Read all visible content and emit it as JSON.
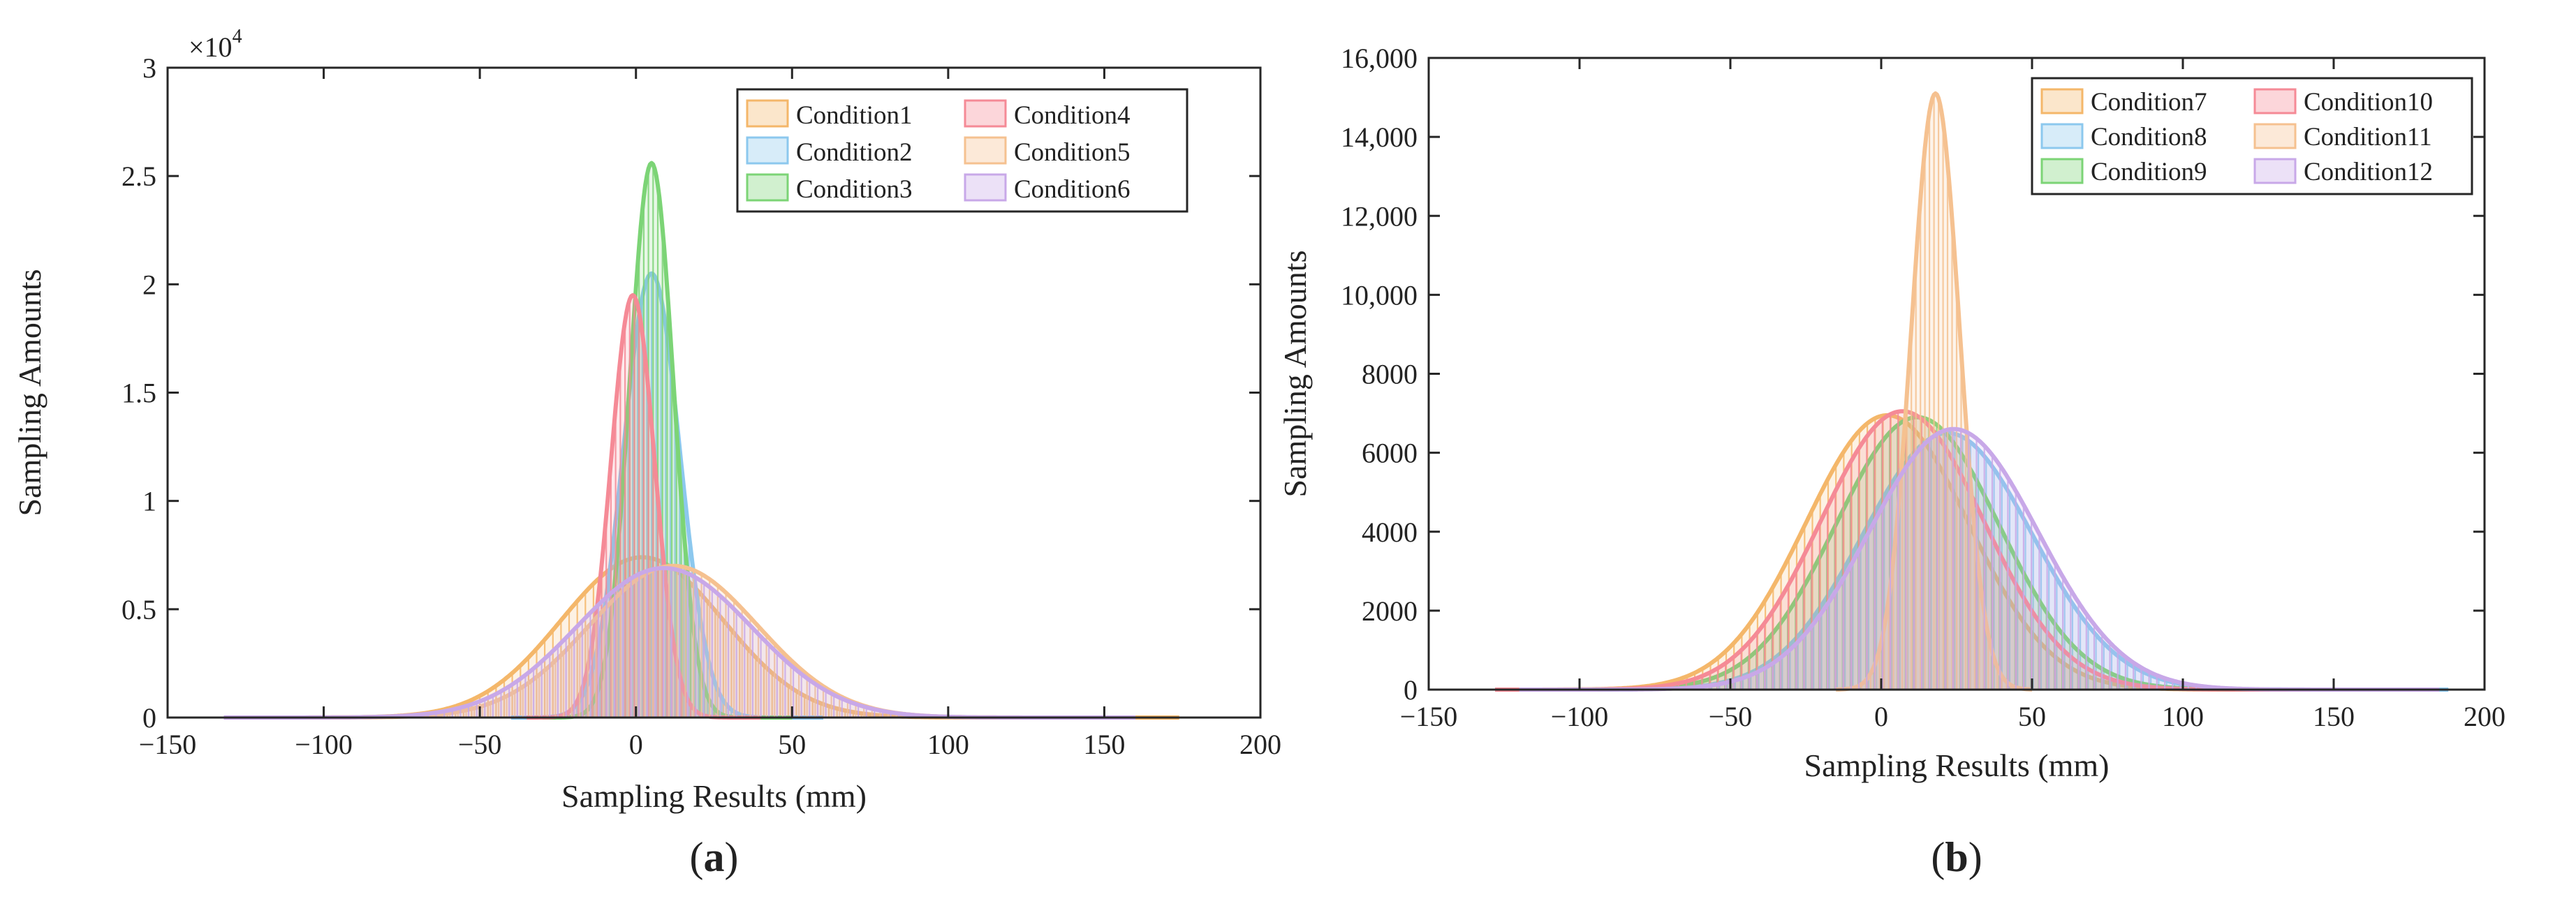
{
  "panels": [
    {
      "id": "a",
      "label_prefix": "(",
      "label_letter": "a",
      "label_suffix": ")",
      "multiplier_text": "×10",
      "multiplier_exp": "4",
      "y_tick_labels": [
        "0",
        "0.5",
        "1",
        "1.5",
        "2",
        "2.5",
        "3"
      ]
    },
    {
      "id": "b",
      "label_prefix": "(",
      "label_letter": "b",
      "label_suffix": ")",
      "y_tick_labels": [
        "0",
        "2000",
        "4000",
        "6000",
        "8000",
        "10,000",
        "12,000",
        "14,000",
        "16,000"
      ]
    }
  ],
  "chart_data": [
    {
      "type": "area",
      "xlabel": "Sampling Results (mm)",
      "ylabel": "Sampling Amounts",
      "xlim": [
        -150,
        200
      ],
      "ylim": [
        0,
        30000
      ],
      "x_ticks": [
        -150,
        -100,
        -50,
        0,
        50,
        100,
        150,
        200
      ],
      "y_ticks": [
        0,
        5000,
        10000,
        15000,
        20000,
        25000,
        30000
      ],
      "grid": false,
      "legend_position": "top-right",
      "legend_columns": 2,
      "series": [
        {
          "name": "Condition1",
          "color": "#f4b76a",
          "peak": 7400,
          "mean": 2,
          "sd": 26,
          "x_min": -132,
          "x_max": 174
        },
        {
          "name": "Condition2",
          "color": "#8cc8ee",
          "peak": 20500,
          "mean": 5,
          "sd": 9,
          "x_min": -40,
          "x_max": 60
        },
        {
          "name": "Condition3",
          "color": "#7cd476",
          "peak": 25600,
          "mean": 5,
          "sd": 7,
          "x_min": -30,
          "x_max": 50
        },
        {
          "name": "Condition4",
          "color": "#f58a96",
          "peak": 19500,
          "mean": -1,
          "sd": 7,
          "x_min": -35,
          "x_max": 40
        },
        {
          "name": "Condition5",
          "color": "#f5c190",
          "peak": 7000,
          "mean": 12,
          "sd": 27,
          "x_min": -120,
          "x_max": 160
        },
        {
          "name": "Condition6",
          "color": "#c8a8e8",
          "peak": 6900,
          "mean": 9,
          "sd": 28,
          "x_min": -132,
          "x_max": 160
        }
      ]
    },
    {
      "type": "area",
      "xlabel": "Sampling Results (mm)",
      "ylabel": "Sampling Amounts",
      "xlim": [
        -150,
        200
      ],
      "ylim": [
        0,
        16000
      ],
      "x_ticks": [
        -150,
        -100,
        -50,
        0,
        50,
        100,
        150,
        200
      ],
      "y_ticks": [
        0,
        2000,
        4000,
        6000,
        8000,
        10000,
        12000,
        14000,
        16000
      ],
      "grid": false,
      "legend_position": "top-right",
      "legend_columns": 2,
      "series": [
        {
          "name": "Condition7",
          "color": "#f4b76a",
          "peak": 6950,
          "mean": 2,
          "sd": 27,
          "x_min": -128,
          "x_max": 172
        },
        {
          "name": "Condition8",
          "color": "#8cc8ee",
          "peak": 6500,
          "mean": 22,
          "sd": 28,
          "x_min": -120,
          "x_max": 188
        },
        {
          "name": "Condition9",
          "color": "#7cd476",
          "peak": 6900,
          "mean": 12,
          "sd": 27,
          "x_min": -125,
          "x_max": 180
        },
        {
          "name": "Condition10",
          "color": "#f58a96",
          "peak": 7050,
          "mean": 7,
          "sd": 27,
          "x_min": -128,
          "x_max": 175
        },
        {
          "name": "Condition11",
          "color": "#f5c190",
          "peak": 15100,
          "mean": 18,
          "sd": 8,
          "x_min": -15,
          "x_max": 50
        },
        {
          "name": "Condition12",
          "color": "#c8a8e8",
          "peak": 6600,
          "mean": 24,
          "sd": 28,
          "x_min": -120,
          "x_max": 185
        }
      ]
    }
  ]
}
